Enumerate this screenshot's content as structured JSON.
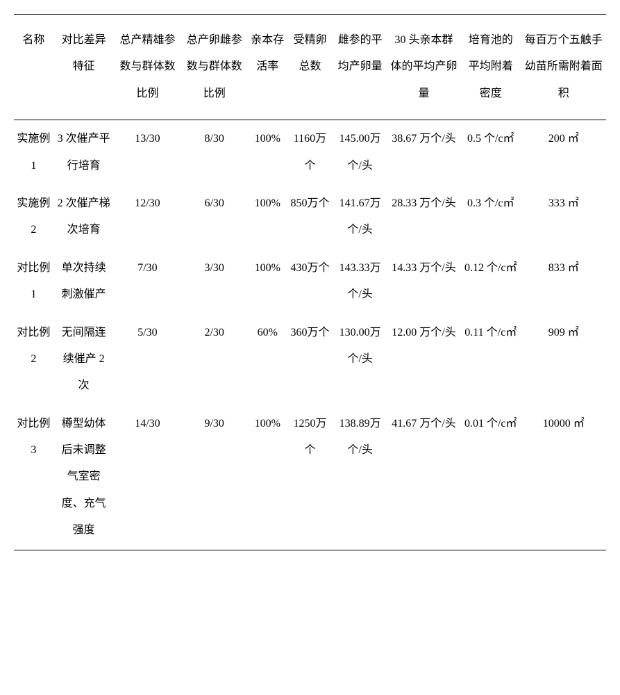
{
  "columns": [
    {
      "key": "name",
      "label": "名称",
      "cls": "col-name"
    },
    {
      "key": "feature",
      "label": "对比差异特征",
      "cls": "col-feat"
    },
    {
      "key": "maleRatio",
      "label": "总产精雄参数与群体数比例",
      "cls": "col-male"
    },
    {
      "key": "femaleRatio",
      "label": "总产卵雌参数与群体数比例",
      "cls": "col-female"
    },
    {
      "key": "survivalRate",
      "label": "亲本存活率",
      "cls": "col-survive"
    },
    {
      "key": "totalEggs",
      "label": "受精卵总数",
      "cls": "col-eggs"
    },
    {
      "key": "avgFemaleEggs",
      "label": "雌参的平均产卵量",
      "cls": "col-avgfemale"
    },
    {
      "key": "groupAvgEggs",
      "label": "30 头亲本群体的平均产卵量",
      "cls": "col-group"
    },
    {
      "key": "attachDensity",
      "label": "培育池的平均附着密度",
      "cls": "col-density"
    },
    {
      "key": "areaPerMillion",
      "label": "每百万个五触手幼苗所需附着面积",
      "cls": "col-area"
    }
  ],
  "rows": [
    {
      "name": "实施例 1",
      "feature": "3 次催产平行培育",
      "maleRatio": "13/30",
      "femaleRatio": "8/30",
      "survivalRate": "100%",
      "totalEggs": "1160万个",
      "avgFemaleEggs": "145.00万个/头",
      "groupAvgEggs": "38.67 万个/头",
      "attachDensity": "0.5 个/c㎡",
      "areaPerMillion": "200  ㎡"
    },
    {
      "name": "实施例 2",
      "feature": "2 次催产梯次培育",
      "maleRatio": "12/30",
      "femaleRatio": "6/30",
      "survivalRate": "100%",
      "totalEggs": "850万个",
      "avgFemaleEggs": "141.67万个/头",
      "groupAvgEggs": "28.33 万个/头",
      "attachDensity": "0.3 个/c㎡",
      "areaPerMillion": "333  ㎡"
    },
    {
      "name": "对比例 1",
      "feature": "单次持续刺激催产",
      "maleRatio": "7/30",
      "femaleRatio": "3/30",
      "survivalRate": "100%",
      "totalEggs": "430万个",
      "avgFemaleEggs": "143.33万个/头",
      "groupAvgEggs": "14.33 万个/头",
      "attachDensity": "0.12 个/c㎡",
      "areaPerMillion": "833  ㎡"
    },
    {
      "name": "对比例 2",
      "feature": "无间隔连续催产 2 次",
      "maleRatio": "5/30",
      "femaleRatio": "2/30",
      "survivalRate": "60%",
      "totalEggs": "360万个",
      "avgFemaleEggs": "130.00万个/头",
      "groupAvgEggs": "12.00 万个/头",
      "attachDensity": "0.11 个/c㎡",
      "areaPerMillion": "909  ㎡"
    },
    {
      "name": "对比例 3",
      "feature": "樽型幼体后未调整气室密度、充气强度",
      "maleRatio": "14/30",
      "femaleRatio": "9/30",
      "survivalRate": "100%",
      "totalEggs": "1250万个",
      "avgFemaleEggs": "138.89万个/头",
      "groupAvgEggs": "41.67 万个/头",
      "attachDensity": "0.01 个/c㎡",
      "areaPerMillion": "10000  ㎡"
    }
  ]
}
